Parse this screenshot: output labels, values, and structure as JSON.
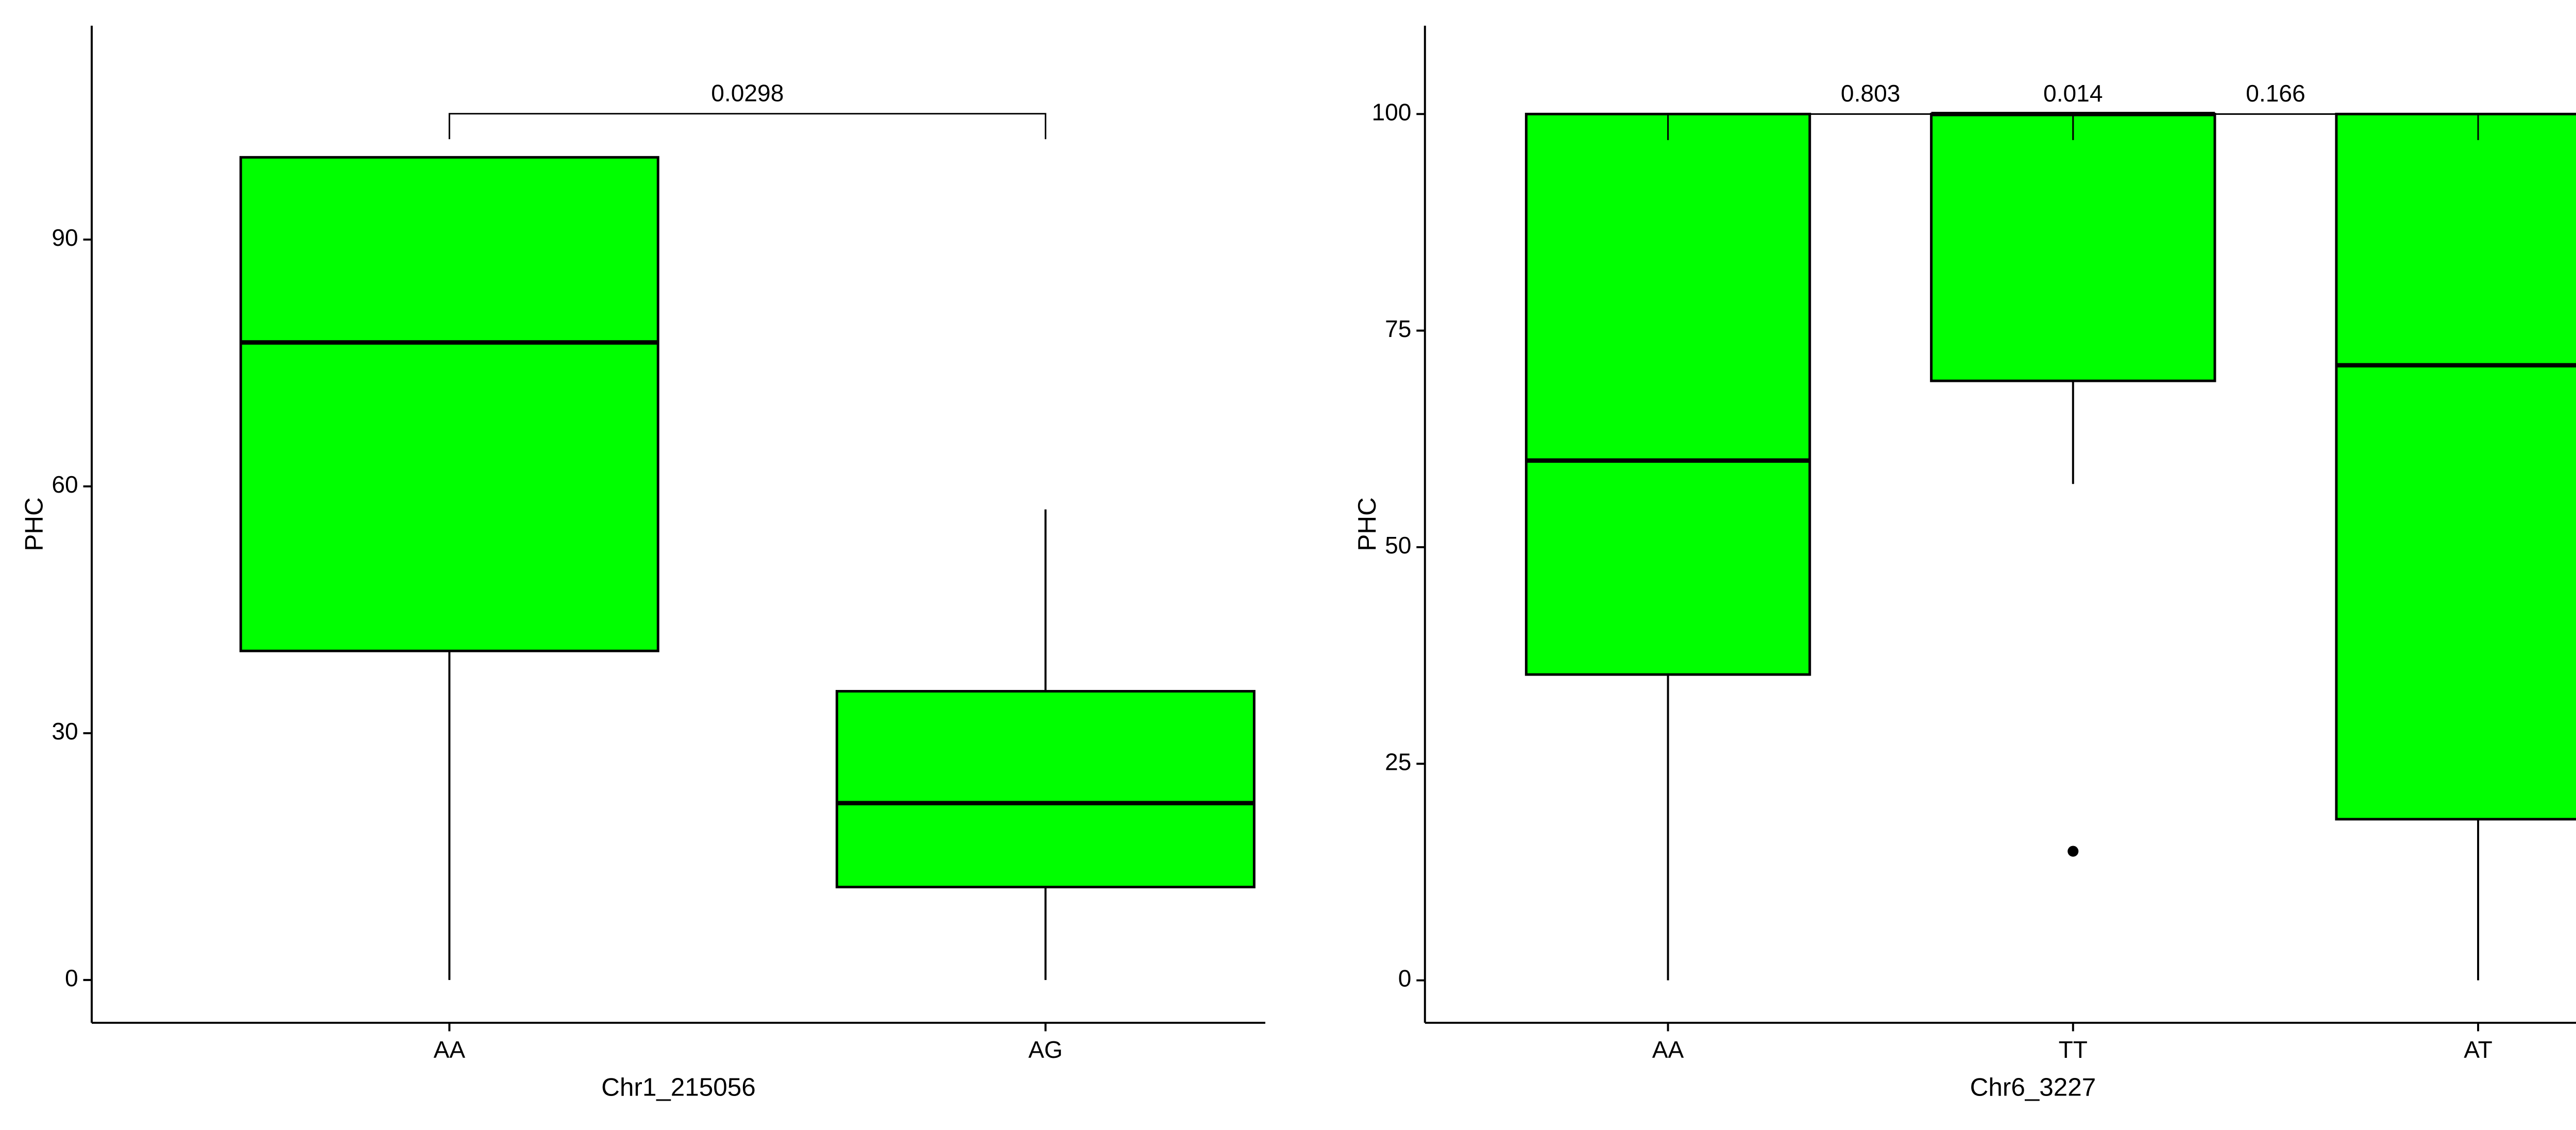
{
  "chart_data": [
    {
      "type": "box",
      "y_label": "PHC",
      "x_label": "Chr1_215056",
      "color": "#00ff00",
      "categories": [
        "AA",
        "AG"
      ],
      "boxes": [
        {
          "whisker_low": 0,
          "q1": 40,
          "median": 77.5,
          "q3": 100,
          "whisker_high": 100,
          "outliers": []
        },
        {
          "whisker_low": 0,
          "q1": 11.3,
          "median": 21.5,
          "q3": 35.1,
          "whisker_high": 57.2,
          "outliers": []
        }
      ],
      "comparisons": [
        {
          "groups": [
            "AA",
            "AG"
          ],
          "label": "0.0298",
          "y": 105.3,
          "tip_y": 102.2
        }
      ],
      "ylim": [
        -5.2,
        116
      ],
      "yticks": [
        0,
        30,
        60,
        90
      ]
    },
    {
      "type": "box",
      "y_label": "PHC",
      "x_label": "Chr6_3227",
      "color": "#00ff00",
      "categories": [
        "AA",
        "TT",
        "AT"
      ],
      "boxes": [
        {
          "whisker_low": 0,
          "q1": 35.3,
          "median": 60,
          "q3": 100,
          "whisker_high": 100,
          "outliers": []
        },
        {
          "whisker_low": 57.3,
          "q1": 69.2,
          "median": 100,
          "q3": 100,
          "whisker_high": 100,
          "outliers": [
            14.9
          ]
        },
        {
          "whisker_low": 0,
          "q1": 18.6,
          "median": 71,
          "q3": 100,
          "whisker_high": 100,
          "outliers": []
        }
      ],
      "comparisons": [
        {
          "groups": [
            "AA",
            "TT"
          ],
          "label": "0.803",
          "y": 100,
          "tip_y": 97
        },
        {
          "groups": [
            "AA",
            "AT"
          ],
          "label": "0.014",
          "y": 100,
          "tip_y": 97
        },
        {
          "groups": [
            "TT",
            "AT"
          ],
          "label": "0.166",
          "y": 100,
          "tip_y": 97
        }
      ],
      "ylim": [
        -4.9,
        110.2
      ],
      "yticks": [
        0,
        25,
        50,
        75,
        100
      ]
    }
  ]
}
